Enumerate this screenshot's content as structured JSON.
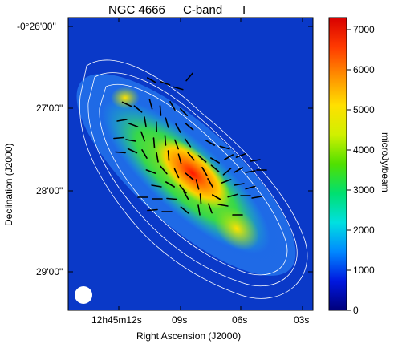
{
  "chart_data": {
    "type": "heatmap",
    "title_parts": [
      "NGC 4666",
      "C-band",
      "I"
    ],
    "xlabel": "Right Ascension (J2000)",
    "ylabel": "Declination (J2000)",
    "x_ticks": [
      "12h45m12s",
      "09s",
      "06s",
      "03s"
    ],
    "y_ticks": [
      "-0°26'00\"",
      "27'00\"",
      "28'00\"",
      "29'00\""
    ],
    "colorbar": {
      "label": "microJy/beam",
      "range": [
        0,
        7300
      ],
      "ticks": [
        "0",
        "1000",
        "2000",
        "3000",
        "4000",
        "5000",
        "6000",
        "7000"
      ],
      "tick_values": [
        0,
        1000,
        2000,
        3000,
        4000,
        5000,
        6000,
        7000
      ],
      "colormap": [
        "#00007a",
        "#0018e0",
        "#0088ff",
        "#00e0e0",
        "#00e070",
        "#50e000",
        "#d0f000",
        "#ffe000",
        "#ff9000",
        "#ff3a00",
        "#d80000"
      ]
    },
    "contour_color": "#ffffff",
    "background_color": "#0a39c8",
    "vector_color": "#000000"
  }
}
